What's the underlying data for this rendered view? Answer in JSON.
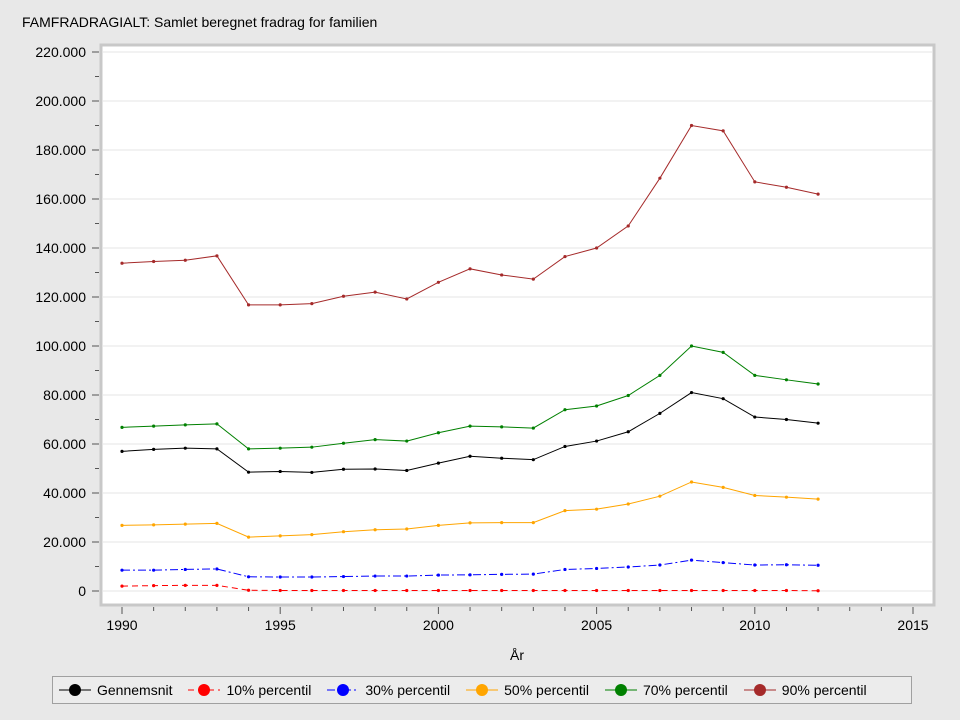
{
  "chart_data": {
    "type": "line",
    "title": "FAMFRADRAGIALT: Samlet beregnet fradrag for familien",
    "xlabel": "År",
    "ylabel": "",
    "xlim": [
      1989,
      2016
    ],
    "ylim": [
      0,
      220000
    ],
    "x_ticks": [
      1990,
      1995,
      2000,
      2005,
      2010,
      2015
    ],
    "y_ticks": [
      0,
      20000,
      40000,
      60000,
      80000,
      100000,
      120000,
      140000,
      160000,
      180000,
      200000,
      220000
    ],
    "y_tick_labels": [
      "0",
      "20.000",
      "40.000",
      "60.000",
      "80.000",
      "100.000",
      "120.000",
      "140.000",
      "160.000",
      "180.000",
      "200.000",
      "220.000"
    ],
    "grid": true,
    "legend_position": "bottom",
    "x": [
      1990,
      1991,
      1992,
      1993,
      1994,
      1995,
      1996,
      1997,
      1998,
      1999,
      2000,
      2001,
      2002,
      2003,
      2004,
      2005,
      2006,
      2007,
      2008,
      2009,
      2010,
      2011,
      2012
    ],
    "series": [
      {
        "name": "Gennemsnit",
        "color": "#000000",
        "dash": "solid",
        "values": [
          57000,
          57800,
          58300,
          58000,
          48500,
          48800,
          48400,
          49700,
          49800,
          49200,
          52200,
          55000,
          54200,
          53600,
          59000,
          61200,
          65000,
          72500,
          81000,
          78500,
          71000,
          70000,
          68500
        ]
      },
      {
        "name": "10% percentil",
        "color": "#ff0000",
        "dash": "dashed",
        "values": [
          2000,
          2200,
          2300,
          2300,
          300,
          200,
          200,
          200,
          200,
          200,
          200,
          200,
          200,
          200,
          200,
          200,
          200,
          200,
          200,
          200,
          200,
          200,
          100
        ]
      },
      {
        "name": "30% percentil",
        "color": "#0000ff",
        "dash": "dashdot",
        "values": [
          8500,
          8500,
          8800,
          9000,
          5800,
          5700,
          5700,
          5900,
          6100,
          6100,
          6500,
          6600,
          6800,
          6900,
          8800,
          9200,
          9800,
          10600,
          12600,
          11600,
          10600,
          10700,
          10500
        ]
      },
      {
        "name": "50% percentil",
        "color": "#ffa500",
        "dash": "solid",
        "values": [
          26800,
          27000,
          27300,
          27600,
          22000,
          22500,
          23000,
          24200,
          25000,
          25300,
          26800,
          27800,
          27900,
          27900,
          32800,
          33400,
          35500,
          38700,
          44500,
          42300,
          39000,
          38300,
          37500
        ]
      },
      {
        "name": "70% percentil",
        "color": "#008000",
        "dash": "solid",
        "values": [
          66800,
          67300,
          67800,
          68200,
          58000,
          58300,
          58700,
          60300,
          61800,
          61200,
          64600,
          67300,
          67000,
          66500,
          74000,
          75500,
          79800,
          88000,
          100000,
          97400,
          88000,
          86200,
          84500
        ]
      },
      {
        "name": "90% percentil",
        "color": "#a52a2a",
        "dash": "solid",
        "values": [
          133800,
          134500,
          135000,
          136800,
          116800,
          116800,
          117300,
          120300,
          122000,
          119200,
          126000,
          131500,
          129000,
          127300,
          136500,
          140000,
          149000,
          168500,
          190000,
          187800,
          167000,
          164800,
          162000
        ]
      }
    ]
  }
}
